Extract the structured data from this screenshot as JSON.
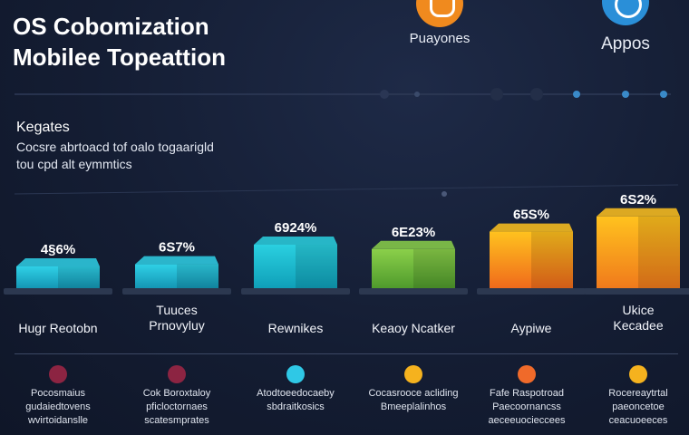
{
  "header": {
    "title_line1": "OS Cobomization",
    "title_line2": "Mobilee Topeattion"
  },
  "brands": [
    {
      "label": "Puayones",
      "color": "#f08a1e",
      "icon": "hexagon-logo-icon"
    },
    {
      "label": "Appos",
      "color": "#2a8fd8",
      "icon": "swirl-logo-icon"
    }
  ],
  "section": {
    "heading": "Kegates",
    "description_line1": "Cocsre abrtoacd tof oalo togaarigld",
    "description_line2": "tou cpd alt eymmtics"
  },
  "chart_data": {
    "type": "bar",
    "categories": [
      "Hugr Reotobn",
      "Tuuces Prnovyluy",
      "Rewnikes",
      "Keaoy Ncatker",
      "Aypiwe",
      "Ukice Kecadee"
    ],
    "category_lines": [
      [
        "Hugr Reotobn"
      ],
      [
        "Tuuces",
        "Prnovyluy"
      ],
      [
        "Rewnikes"
      ],
      [
        "Keaoy Ncatker"
      ],
      [
        "Aypiwe"
      ],
      [
        "Ukice",
        "Kecadee"
      ]
    ],
    "values": [
      10,
      11,
      20,
      18,
      26,
      33
    ],
    "data_labels": [
      "4§6%",
      "6S7%",
      "6924%",
      "6E23%",
      "65S%",
      "6S2%"
    ],
    "colors": [
      [
        "#2fd0e6",
        "#1496b4"
      ],
      [
        "#2fd0e6",
        "#1496b4"
      ],
      [
        "#2ad0e0",
        "#0f9fb8"
      ],
      [
        "#8bd04a",
        "#4f9a2c"
      ],
      [
        "#ffc21e",
        "#f06a1c"
      ],
      [
        "#ffc21e",
        "#f07a1c"
      ]
    ],
    "ylim": [
      0,
      40
    ],
    "grid": false,
    "title": "",
    "xlabel": "",
    "ylabel": ""
  },
  "notes": [
    {
      "color": "#8c2442",
      "lines": [
        "Pocosmaius",
        "gudaiedtovens",
        "wvirtoidanslle"
      ]
    },
    {
      "color": "#8c2442",
      "lines": [
        "Cok Boroxtaloy",
        "pficloctornaes",
        "scatesmprates"
      ]
    },
    {
      "color": "#2fc8e6",
      "lines": [
        "Atodtoeedocaeby",
        "sbdraitkosics"
      ]
    },
    {
      "color": "#f5b21e",
      "lines": [
        "Cocasrooce acliding",
        "Bmeeplalinhos"
      ]
    },
    {
      "color": "#f06a2a",
      "lines": [
        "Fafe Raspotroad",
        "Paecoornancss",
        "aeceeuocieccees"
      ]
    },
    {
      "color": "#f5b21e",
      "lines": [
        "Rocereaytrtal",
        "paeoncetoe",
        "ceacuoeeces"
      ]
    }
  ]
}
